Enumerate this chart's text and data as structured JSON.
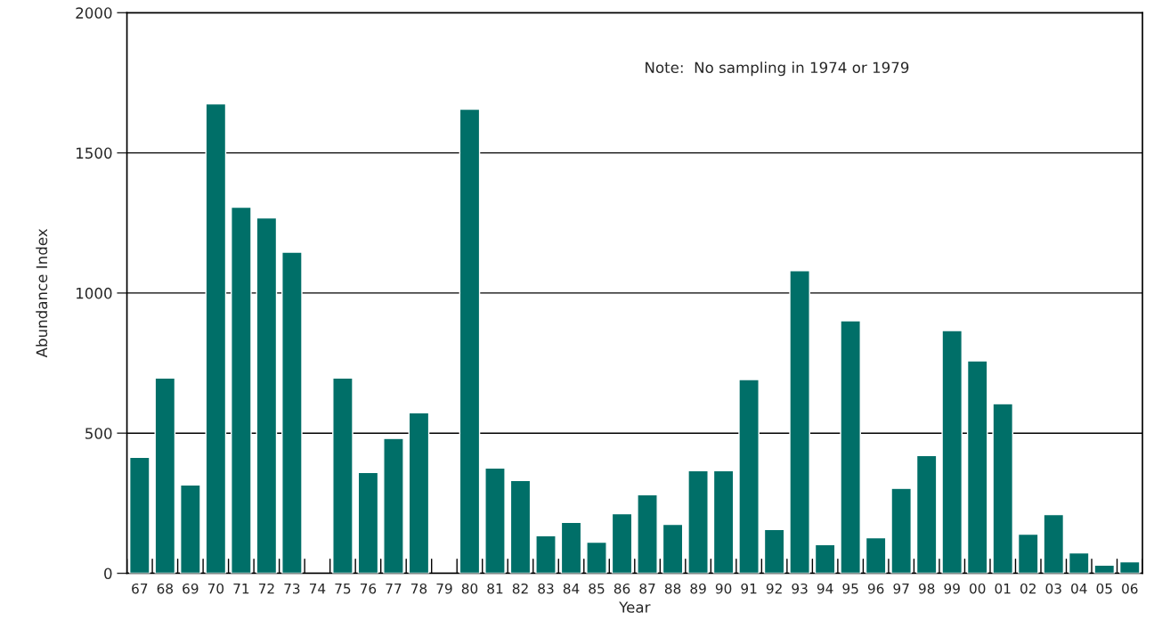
{
  "chart_data": {
    "type": "bar",
    "xlabel": "Year",
    "ylabel": "Abundance Index",
    "categories": [
      "67",
      "68",
      "69",
      "70",
      "71",
      "72",
      "73",
      "74",
      "75",
      "76",
      "77",
      "78",
      "79",
      "80",
      "81",
      "82",
      "83",
      "84",
      "85",
      "86",
      "87",
      "88",
      "89",
      "90",
      "91",
      "92",
      "93",
      "94",
      "95",
      "96",
      "97",
      "98",
      "99",
      "00",
      "01",
      "02",
      "03",
      "04",
      "05",
      "06"
    ],
    "values": [
      414,
      697,
      315,
      1675,
      1306,
      1268,
      1146,
      null,
      697,
      360,
      481,
      573,
      null,
      1656,
      376,
      331,
      134,
      182,
      111,
      213,
      280,
      175,
      366,
      366,
      691,
      156,
      1080,
      102,
      901,
      127,
      303,
      420,
      866,
      758,
      605,
      140,
      210,
      73,
      29,
      41
    ],
    "color": "#006f68",
    "ylim": [
      0,
      2000
    ],
    "yticks": [
      0,
      500,
      1000,
      1500,
      2000
    ],
    "grid": "y",
    "annotations": [
      "Note:  No sampling in 1974 or 1979"
    ]
  }
}
